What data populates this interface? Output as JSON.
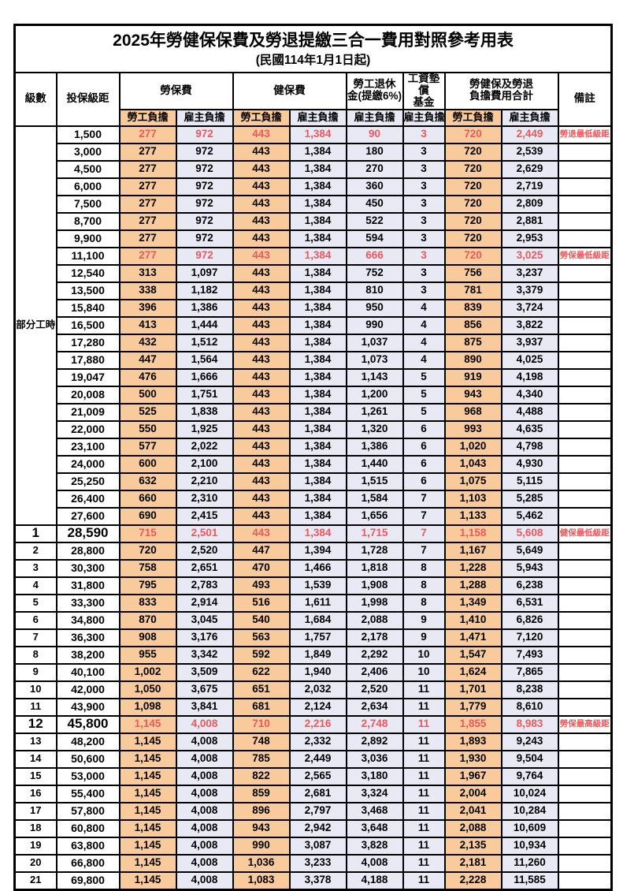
{
  "title": "2025年勞健保保費及勞退提繳三合一費用對照參考用表",
  "subtitle": "(民國114年1月1日起)",
  "colors": {
    "employee_bg": "#F9CB9C",
    "employer_bg": "#E9E8F5",
    "highlight_red": "#F0575A",
    "border": "#000000"
  },
  "table": {
    "header": {
      "level": "級數",
      "bracket": "投保級距",
      "labor": "勞保費",
      "health": "健保費",
      "pension": "勞工退休\n金(提繳6%)",
      "fund": "工資墊償\n基金",
      "total": "勞健保及勞退\n負擔費用合計",
      "remark": "備註",
      "employee": "勞工負擔",
      "employer": "雇主負擔"
    },
    "part_time_label": "部分工時",
    "rows": [
      {
        "level": "",
        "bracket": "1,500",
        "labor_emp": "277",
        "labor_er": "972",
        "health_emp": "443",
        "health_er": "1,384",
        "pension": "90",
        "fund": "3",
        "total_emp": "720",
        "total_er": "2,449",
        "remark": "勞退最低級距",
        "red": true,
        "big": false
      },
      {
        "level": "",
        "bracket": "3,000",
        "labor_emp": "277",
        "labor_er": "972",
        "health_emp": "443",
        "health_er": "1,384",
        "pension": "180",
        "fund": "3",
        "total_emp": "720",
        "total_er": "2,539",
        "remark": "",
        "red": false,
        "big": false
      },
      {
        "level": "",
        "bracket": "4,500",
        "labor_emp": "277",
        "labor_er": "972",
        "health_emp": "443",
        "health_er": "1,384",
        "pension": "270",
        "fund": "3",
        "total_emp": "720",
        "total_er": "2,629",
        "remark": "",
        "red": false,
        "big": false
      },
      {
        "level": "",
        "bracket": "6,000",
        "labor_emp": "277",
        "labor_er": "972",
        "health_emp": "443",
        "health_er": "1,384",
        "pension": "360",
        "fund": "3",
        "total_emp": "720",
        "total_er": "2,719",
        "remark": "",
        "red": false,
        "big": false
      },
      {
        "level": "",
        "bracket": "7,500",
        "labor_emp": "277",
        "labor_er": "972",
        "health_emp": "443",
        "health_er": "1,384",
        "pension": "450",
        "fund": "3",
        "total_emp": "720",
        "total_er": "2,809",
        "remark": "",
        "red": false,
        "big": false
      },
      {
        "level": "",
        "bracket": "8,700",
        "labor_emp": "277",
        "labor_er": "972",
        "health_emp": "443",
        "health_er": "1,384",
        "pension": "522",
        "fund": "3",
        "total_emp": "720",
        "total_er": "2,881",
        "remark": "",
        "red": false,
        "big": false
      },
      {
        "level": "",
        "bracket": "9,900",
        "labor_emp": "277",
        "labor_er": "972",
        "health_emp": "443",
        "health_er": "1,384",
        "pension": "594",
        "fund": "3",
        "total_emp": "720",
        "total_er": "2,953",
        "remark": "",
        "red": false,
        "big": false
      },
      {
        "level": "",
        "bracket": "11,100",
        "labor_emp": "277",
        "labor_er": "972",
        "health_emp": "443",
        "health_er": "1,384",
        "pension": "666",
        "fund": "3",
        "total_emp": "720",
        "total_er": "3,025",
        "remark": "勞保最低級距",
        "red": true,
        "big": false
      },
      {
        "level": "",
        "bracket": "12,540",
        "labor_emp": "313",
        "labor_er": "1,097",
        "health_emp": "443",
        "health_er": "1,384",
        "pension": "752",
        "fund": "3",
        "total_emp": "756",
        "total_er": "3,237",
        "remark": "",
        "red": false,
        "big": false
      },
      {
        "level": "",
        "bracket": "13,500",
        "labor_emp": "338",
        "labor_er": "1,182",
        "health_emp": "443",
        "health_er": "1,384",
        "pension": "810",
        "fund": "3",
        "total_emp": "781",
        "total_er": "3,379",
        "remark": "",
        "red": false,
        "big": false
      },
      {
        "level": "",
        "bracket": "15,840",
        "labor_emp": "396",
        "labor_er": "1,386",
        "health_emp": "443",
        "health_er": "1,384",
        "pension": "950",
        "fund": "4",
        "total_emp": "839",
        "total_er": "3,724",
        "remark": "",
        "red": false,
        "big": false
      },
      {
        "level": "",
        "bracket": "16,500",
        "labor_emp": "413",
        "labor_er": "1,444",
        "health_emp": "443",
        "health_er": "1,384",
        "pension": "990",
        "fund": "4",
        "total_emp": "856",
        "total_er": "3,822",
        "remark": "",
        "red": false,
        "big": false
      },
      {
        "level": "",
        "bracket": "17,280",
        "labor_emp": "432",
        "labor_er": "1,512",
        "health_emp": "443",
        "health_er": "1,384",
        "pension": "1,037",
        "fund": "4",
        "total_emp": "875",
        "total_er": "3,937",
        "remark": "",
        "red": false,
        "big": false
      },
      {
        "level": "",
        "bracket": "17,880",
        "labor_emp": "447",
        "labor_er": "1,564",
        "health_emp": "443",
        "health_er": "1,384",
        "pension": "1,073",
        "fund": "4",
        "total_emp": "890",
        "total_er": "4,025",
        "remark": "",
        "red": false,
        "big": false
      },
      {
        "level": "",
        "bracket": "19,047",
        "labor_emp": "476",
        "labor_er": "1,666",
        "health_emp": "443",
        "health_er": "1,384",
        "pension": "1,143",
        "fund": "5",
        "total_emp": "919",
        "total_er": "4,198",
        "remark": "",
        "red": false,
        "big": false
      },
      {
        "level": "",
        "bracket": "20,008",
        "labor_emp": "500",
        "labor_er": "1,751",
        "health_emp": "443",
        "health_er": "1,384",
        "pension": "1,200",
        "fund": "5",
        "total_emp": "943",
        "total_er": "4,340",
        "remark": "",
        "red": false,
        "big": false
      },
      {
        "level": "",
        "bracket": "21,009",
        "labor_emp": "525",
        "labor_er": "1,838",
        "health_emp": "443",
        "health_er": "1,384",
        "pension": "1,261",
        "fund": "5",
        "total_emp": "968",
        "total_er": "4,488",
        "remark": "",
        "red": false,
        "big": false
      },
      {
        "level": "",
        "bracket": "22,000",
        "labor_emp": "550",
        "labor_er": "1,925",
        "health_emp": "443",
        "health_er": "1,384",
        "pension": "1,320",
        "fund": "6",
        "total_emp": "993",
        "total_er": "4,635",
        "remark": "",
        "red": false,
        "big": false
      },
      {
        "level": "",
        "bracket": "23,100",
        "labor_emp": "577",
        "labor_er": "2,022",
        "health_emp": "443",
        "health_er": "1,384",
        "pension": "1,386",
        "fund": "6",
        "total_emp": "1,020",
        "total_er": "4,798",
        "remark": "",
        "red": false,
        "big": false
      },
      {
        "level": "",
        "bracket": "24,000",
        "labor_emp": "600",
        "labor_er": "2,100",
        "health_emp": "443",
        "health_er": "1,384",
        "pension": "1,440",
        "fund": "6",
        "total_emp": "1,043",
        "total_er": "4,930",
        "remark": "",
        "red": false,
        "big": false
      },
      {
        "level": "",
        "bracket": "25,250",
        "labor_emp": "632",
        "labor_er": "2,210",
        "health_emp": "443",
        "health_er": "1,384",
        "pension": "1,515",
        "fund": "6",
        "total_emp": "1,075",
        "total_er": "5,115",
        "remark": "",
        "red": false,
        "big": false
      },
      {
        "level": "",
        "bracket": "26,400",
        "labor_emp": "660",
        "labor_er": "2,310",
        "health_emp": "443",
        "health_er": "1,384",
        "pension": "1,584",
        "fund": "7",
        "total_emp": "1,103",
        "total_er": "5,285",
        "remark": "",
        "red": false,
        "big": false
      },
      {
        "level": "",
        "bracket": "27,600",
        "labor_emp": "690",
        "labor_er": "2,415",
        "health_emp": "443",
        "health_er": "1,384",
        "pension": "1,656",
        "fund": "7",
        "total_emp": "1,133",
        "total_er": "5,462",
        "remark": "",
        "red": false,
        "big": false
      },
      {
        "level": "1",
        "bracket": "28,590",
        "labor_emp": "715",
        "labor_er": "2,501",
        "health_emp": "443",
        "health_er": "1,384",
        "pension": "1,715",
        "fund": "7",
        "total_emp": "1,158",
        "total_er": "5,608",
        "remark": "健保最低級距",
        "red": true,
        "big": true
      },
      {
        "level": "2",
        "bracket": "28,800",
        "labor_emp": "720",
        "labor_er": "2,520",
        "health_emp": "447",
        "health_er": "1,394",
        "pension": "1,728",
        "fund": "7",
        "total_emp": "1,167",
        "total_er": "5,649",
        "remark": "",
        "red": false,
        "big": false
      },
      {
        "level": "3",
        "bracket": "30,300",
        "labor_emp": "758",
        "labor_er": "2,651",
        "health_emp": "470",
        "health_er": "1,466",
        "pension": "1,818",
        "fund": "8",
        "total_emp": "1,228",
        "total_er": "5,943",
        "remark": "",
        "red": false,
        "big": false
      },
      {
        "level": "4",
        "bracket": "31,800",
        "labor_emp": "795",
        "labor_er": "2,783",
        "health_emp": "493",
        "health_er": "1,539",
        "pension": "1,908",
        "fund": "8",
        "total_emp": "1,288",
        "total_er": "6,238",
        "remark": "",
        "red": false,
        "big": false
      },
      {
        "level": "5",
        "bracket": "33,300",
        "labor_emp": "833",
        "labor_er": "2,914",
        "health_emp": "516",
        "health_er": "1,611",
        "pension": "1,998",
        "fund": "8",
        "total_emp": "1,349",
        "total_er": "6,531",
        "remark": "",
        "red": false,
        "big": false
      },
      {
        "level": "6",
        "bracket": "34,800",
        "labor_emp": "870",
        "labor_er": "3,045",
        "health_emp": "540",
        "health_er": "1,684",
        "pension": "2,088",
        "fund": "9",
        "total_emp": "1,410",
        "total_er": "6,826",
        "remark": "",
        "red": false,
        "big": false
      },
      {
        "level": "7",
        "bracket": "36,300",
        "labor_emp": "908",
        "labor_er": "3,176",
        "health_emp": "563",
        "health_er": "1,757",
        "pension": "2,178",
        "fund": "9",
        "total_emp": "1,471",
        "total_er": "7,120",
        "remark": "",
        "red": false,
        "big": false
      },
      {
        "level": "8",
        "bracket": "38,200",
        "labor_emp": "955",
        "labor_er": "3,342",
        "health_emp": "592",
        "health_er": "1,849",
        "pension": "2,292",
        "fund": "10",
        "total_emp": "1,547",
        "total_er": "7,493",
        "remark": "",
        "red": false,
        "big": false
      },
      {
        "level": "9",
        "bracket": "40,100",
        "labor_emp": "1,002",
        "labor_er": "3,509",
        "health_emp": "622",
        "health_er": "1,940",
        "pension": "2,406",
        "fund": "10",
        "total_emp": "1,624",
        "total_er": "7,865",
        "remark": "",
        "red": false,
        "big": false
      },
      {
        "level": "10",
        "bracket": "42,000",
        "labor_emp": "1,050",
        "labor_er": "3,675",
        "health_emp": "651",
        "health_er": "2,032",
        "pension": "2,520",
        "fund": "11",
        "total_emp": "1,701",
        "total_er": "8,238",
        "remark": "",
        "red": false,
        "big": false
      },
      {
        "level": "11",
        "bracket": "43,900",
        "labor_emp": "1,098",
        "labor_er": "3,841",
        "health_emp": "681",
        "health_er": "2,124",
        "pension": "2,634",
        "fund": "11",
        "total_emp": "1,779",
        "total_er": "8,610",
        "remark": "",
        "red": false,
        "big": false
      },
      {
        "level": "12",
        "bracket": "45,800",
        "labor_emp": "1,145",
        "labor_er": "4,008",
        "health_emp": "710",
        "health_er": "2,216",
        "pension": "2,748",
        "fund": "11",
        "total_emp": "1,855",
        "total_er": "8,983",
        "remark": "勞保最高級距",
        "red": true,
        "big": true
      },
      {
        "level": "13",
        "bracket": "48,200",
        "labor_emp": "1,145",
        "labor_er": "4,008",
        "health_emp": "748",
        "health_er": "2,332",
        "pension": "2,892",
        "fund": "11",
        "total_emp": "1,893",
        "total_er": "9,243",
        "remark": "",
        "red": false,
        "big": false
      },
      {
        "level": "14",
        "bracket": "50,600",
        "labor_emp": "1,145",
        "labor_er": "4,008",
        "health_emp": "785",
        "health_er": "2,449",
        "pension": "3,036",
        "fund": "11",
        "total_emp": "1,930",
        "total_er": "9,504",
        "remark": "",
        "red": false,
        "big": false
      },
      {
        "level": "15",
        "bracket": "53,000",
        "labor_emp": "1,145",
        "labor_er": "4,008",
        "health_emp": "822",
        "health_er": "2,565",
        "pension": "3,180",
        "fund": "11",
        "total_emp": "1,967",
        "total_er": "9,764",
        "remark": "",
        "red": false,
        "big": false
      },
      {
        "level": "16",
        "bracket": "55,400",
        "labor_emp": "1,145",
        "labor_er": "4,008",
        "health_emp": "859",
        "health_er": "2,681",
        "pension": "3,324",
        "fund": "11",
        "total_emp": "2,004",
        "total_er": "10,024",
        "remark": "",
        "red": false,
        "big": false
      },
      {
        "level": "17",
        "bracket": "57,800",
        "labor_emp": "1,145",
        "labor_er": "4,008",
        "health_emp": "896",
        "health_er": "2,797",
        "pension": "3,468",
        "fund": "11",
        "total_emp": "2,041",
        "total_er": "10,284",
        "remark": "",
        "red": false,
        "big": false
      },
      {
        "level": "18",
        "bracket": "60,800",
        "labor_emp": "1,145",
        "labor_er": "4,008",
        "health_emp": "943",
        "health_er": "2,942",
        "pension": "3,648",
        "fund": "11",
        "total_emp": "2,088",
        "total_er": "10,609",
        "remark": "",
        "red": false,
        "big": false
      },
      {
        "level": "19",
        "bracket": "63,800",
        "labor_emp": "1,145",
        "labor_er": "4,008",
        "health_emp": "990",
        "health_er": "3,087",
        "pension": "3,828",
        "fund": "11",
        "total_emp": "2,135",
        "total_er": "10,934",
        "remark": "",
        "red": false,
        "big": false
      },
      {
        "level": "20",
        "bracket": "66,800",
        "labor_emp": "1,145",
        "labor_er": "4,008",
        "health_emp": "1,036",
        "health_er": "3,233",
        "pension": "4,008",
        "fund": "11",
        "total_emp": "2,181",
        "total_er": "11,260",
        "remark": "",
        "red": false,
        "big": false
      },
      {
        "level": "21",
        "bracket": "69,800",
        "labor_emp": "1,145",
        "labor_er": "4,008",
        "health_emp": "1,083",
        "health_er": "3,378",
        "pension": "4,188",
        "fund": "11",
        "total_emp": "2,228",
        "total_er": "11,585",
        "remark": "",
        "red": false,
        "big": false
      }
    ]
  }
}
